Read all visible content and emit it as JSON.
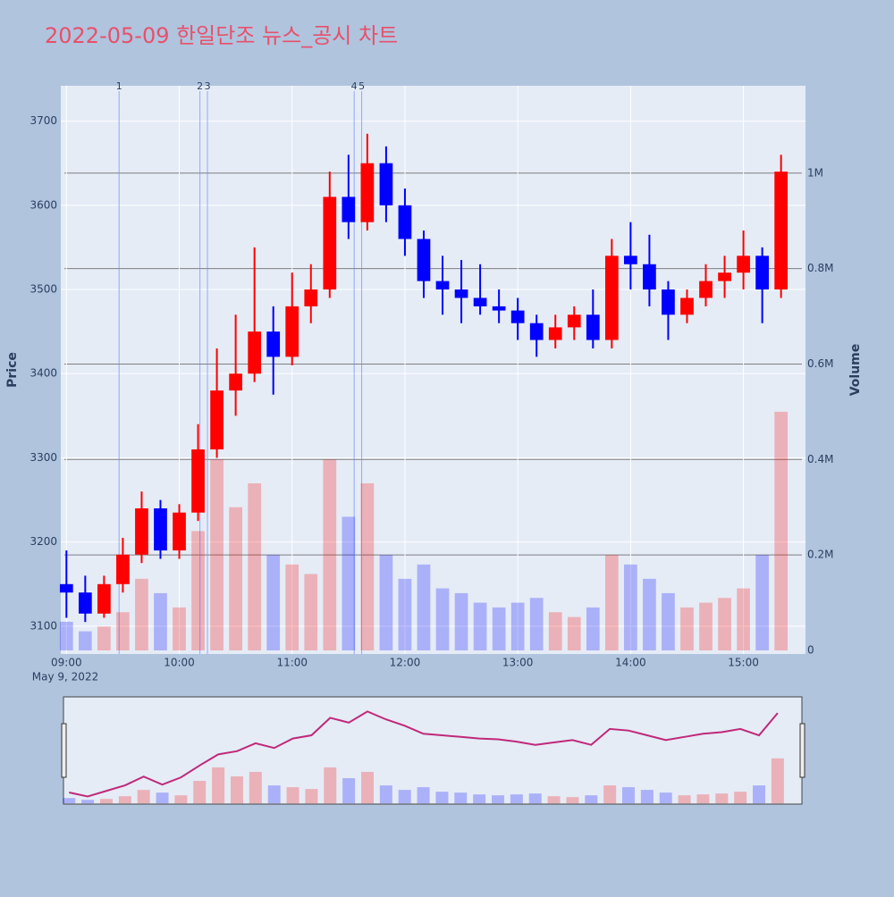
{
  "chart_data": {
    "type": "candlestick",
    "title": "2022-05-09 한일단조 뉴스_공시 차트",
    "y_label": "Price",
    "y2_label": "Volume",
    "x_date_label": "May 9, 2022",
    "increasing_color": "#ff0000",
    "decreasing_color": "#0000ff",
    "x": [
      "2022-05-09 09:00",
      "2022-05-09 09:10",
      "2022-05-09 09:20",
      "2022-05-09 09:30",
      "2022-05-09 09:40",
      "2022-05-09 09:50",
      "2022-05-09 10:00",
      "2022-05-09 10:10",
      "2022-05-09 10:20",
      "2022-05-09 10:30",
      "2022-05-09 10:40",
      "2022-05-09 10:50",
      "2022-05-09 11:00",
      "2022-05-09 11:10",
      "2022-05-09 11:20",
      "2022-05-09 11:30",
      "2022-05-09 11:40",
      "2022-05-09 11:50",
      "2022-05-09 12:00",
      "2022-05-09 12:10",
      "2022-05-09 12:20",
      "2022-05-09 12:30",
      "2022-05-09 12:40",
      "2022-05-09 12:50",
      "2022-05-09 13:00",
      "2022-05-09 13:10",
      "2022-05-09 13:20",
      "2022-05-09 13:30",
      "2022-05-09 13:40",
      "2022-05-09 13:50",
      "2022-05-09 14:00",
      "2022-05-09 14:10",
      "2022-05-09 14:20",
      "2022-05-09 14:30",
      "2022-05-09 14:40",
      "2022-05-09 14:50",
      "2022-05-09 15:00",
      "2022-05-09 15:10",
      "2022-05-09 15:20"
    ],
    "open": [
      3150,
      3140,
      3115,
      3150,
      3185,
      3240,
      3190,
      3235,
      3310,
      3380,
      3400,
      3450,
      3420,
      3480,
      3500,
      3610,
      3580,
      3650,
      3600,
      3560,
      3510,
      3500,
      3490,
      3480,
      3475,
      3460,
      3440,
      3455,
      3470,
      3440,
      3540,
      3530,
      3500,
      3470,
      3490,
      3510,
      3520,
      3540,
      3500
    ],
    "high": [
      3190,
      3160,
      3160,
      3205,
      3260,
      3250,
      3245,
      3340,
      3430,
      3470,
      3550,
      3480,
      3520,
      3530,
      3640,
      3660,
      3685,
      3670,
      3620,
      3570,
      3540,
      3535,
      3530,
      3500,
      3490,
      3470,
      3470,
      3480,
      3500,
      3560,
      3580,
      3565,
      3510,
      3500,
      3530,
      3540,
      3570,
      3550,
      3660
    ],
    "low": [
      3110,
      3105,
      3110,
      3140,
      3175,
      3180,
      3180,
      3225,
      3300,
      3350,
      3390,
      3375,
      3410,
      3460,
      3490,
      3560,
      3570,
      3580,
      3540,
      3490,
      3470,
      3460,
      3470,
      3460,
      3440,
      3420,
      3430,
      3440,
      3430,
      3430,
      3500,
      3480,
      3440,
      3460,
      3480,
      3490,
      3500,
      3460,
      3490
    ],
    "close": [
      3140,
      3115,
      3150,
      3185,
      3240,
      3190,
      3235,
      3310,
      3380,
      3400,
      3450,
      3420,
      3480,
      3500,
      3610,
      3580,
      3650,
      3600,
      3560,
      3510,
      3500,
      3490,
      3480,
      3475,
      3460,
      3440,
      3455,
      3470,
      3440,
      3540,
      3530,
      3500,
      3470,
      3490,
      3510,
      3520,
      3540,
      3500,
      3640
    ],
    "volume": [
      60000,
      40000,
      50000,
      80000,
      150000,
      120000,
      90000,
      250000,
      400000,
      300000,
      350000,
      200000,
      180000,
      160000,
      400000,
      280000,
      350000,
      200000,
      150000,
      180000,
      130000,
      120000,
      100000,
      90000,
      100000,
      110000,
      80000,
      70000,
      90000,
      200000,
      180000,
      150000,
      120000,
      90000,
      100000,
      110000,
      130000,
      200000,
      500000
    ],
    "news_markers": [
      {
        "x": "2022-05-09 09:28",
        "label": "1"
      },
      {
        "x": "2022-05-09 10:11",
        "label": "2"
      },
      {
        "x": "2022-05-09 10:15",
        "label": "3"
      },
      {
        "x": "2022-05-09 11:33",
        "label": "4"
      },
      {
        "x": "2022-05-09 11:37",
        "label": "5"
      }
    ],
    "xlim": [
      "2022-05-09 08:57",
      "2022-05-09 15:33"
    ],
    "xticks": [
      {
        "value": "2022-05-09 09:00",
        "label": "09:00"
      },
      {
        "value": "2022-05-09 10:00",
        "label": "10:00"
      },
      {
        "value": "2022-05-09 11:00",
        "label": "11:00"
      },
      {
        "value": "2022-05-09 12:00",
        "label": "12:00"
      },
      {
        "value": "2022-05-09 13:00",
        "label": "13:00"
      },
      {
        "value": "2022-05-09 14:00",
        "label": "14:00"
      },
      {
        "value": "2022-05-09 15:00",
        "label": "15:00"
      }
    ],
    "ylim": [
      3067,
      3742
    ],
    "yticks": [
      3100,
      3200,
      3300,
      3400,
      3500,
      3600,
      3700
    ],
    "y2lim": [
      -7500,
      1183000
    ],
    "y2ticks": [
      0,
      {
        "value": 200000,
        "label": "0.2M"
      },
      {
        "value": 400000,
        "label": "0.4M"
      },
      {
        "value": 600000,
        "label": "0.6M"
      },
      {
        "value": 800000,
        "label": "0.8M"
      },
      {
        "value": 1000000,
        "label": "1M"
      }
    ],
    "grid": true,
    "range_slider": true
  }
}
